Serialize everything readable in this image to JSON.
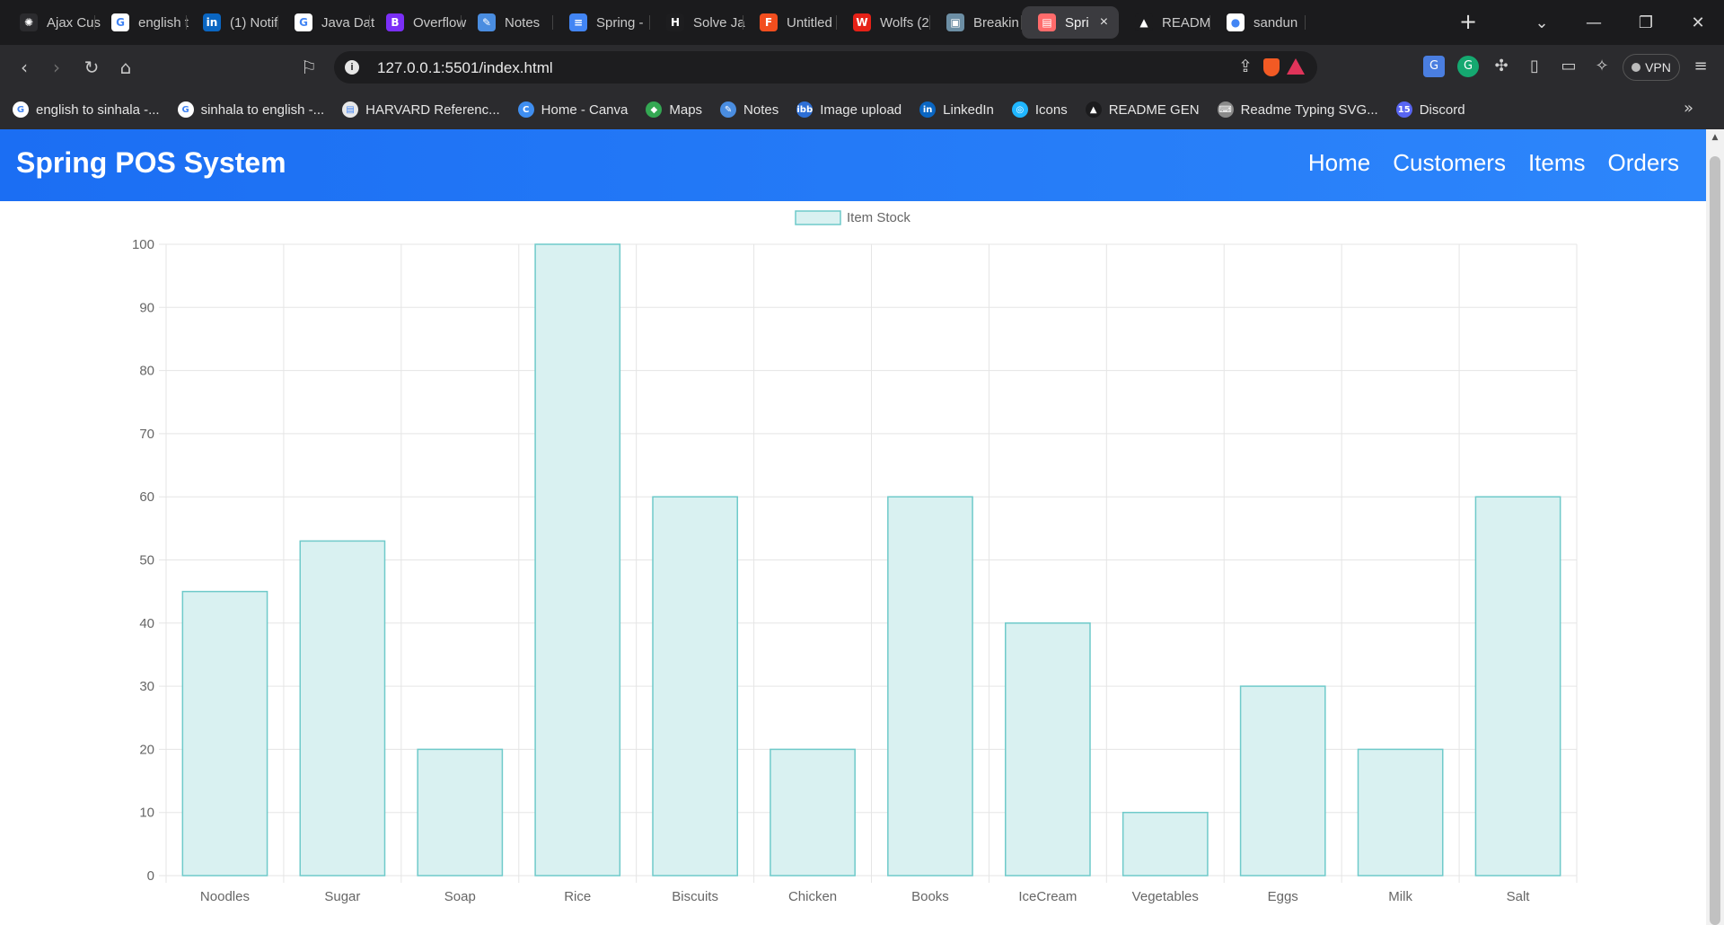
{
  "browser": {
    "tabs": [
      {
        "title": "Ajax Cus",
        "icon": "openai-icon",
        "icon_color": "#2b2b2e",
        "glyph": "✺"
      },
      {
        "title": "english t",
        "icon": "google-icon",
        "icon_color": "#ffffff",
        "glyph": "G"
      },
      {
        "title": "(1) Notif",
        "icon": "linkedin-icon",
        "icon_color": "#0a66c2",
        "glyph": "in"
      },
      {
        "title": "Java Dat",
        "icon": "google-icon",
        "icon_color": "#ffffff",
        "glyph": "G"
      },
      {
        "title": "Overflow",
        "icon": "bootstrap-icon",
        "icon_color": "#7b2ff7",
        "glyph": "B"
      },
      {
        "title": "Notes",
        "icon": "notes-icon",
        "icon_color": "#4a8de0",
        "glyph": "✎"
      },
      {
        "title": "Spring -",
        "icon": "docs-icon",
        "icon_color": "#4285f4",
        "glyph": "≡"
      },
      {
        "title": "Solve Ja",
        "icon": "hackerrank-icon",
        "icon_color": "#1d1d1f",
        "glyph": "H"
      },
      {
        "title": "Untitled",
        "icon": "figma-icon",
        "icon_color": "#f24e1e",
        "glyph": "F"
      },
      {
        "title": "Wolfs (2",
        "icon": "wolf-icon",
        "icon_color": "#e62117",
        "glyph": "W"
      },
      {
        "title": "Breakin",
        "icon": "news-icon",
        "icon_color": "#6c8ea4",
        "glyph": "▣"
      },
      {
        "title": "Spri",
        "icon": "spring-pos-icon",
        "icon_color": "#ff6b6b",
        "glyph": "▤",
        "active": true
      },
      {
        "title": "READM",
        "icon": "readme-icon",
        "icon_color": "#1b1b1d",
        "glyph": "▲"
      },
      {
        "title": "sandun",
        "icon": "github-icon",
        "icon_color": "#ffffff",
        "glyph": "●"
      }
    ],
    "tab_close": "×",
    "new_tab": "+",
    "window_controls": {
      "tab_search": "⌄",
      "minimize": "—",
      "restore": "❐",
      "close": "✕"
    },
    "url": "127.0.0.1:5501/index.html",
    "vpn_label": "VPN",
    "bookmarks": [
      {
        "title": "english to sinhala -...",
        "icon": "google-icon",
        "color": "#ffffff",
        "glyph": "G"
      },
      {
        "title": "sinhala to english -...",
        "icon": "google-icon",
        "color": "#ffffff",
        "glyph": "G"
      },
      {
        "title": "HARVARD Referenc...",
        "icon": "harvard-icon",
        "color": "#e8e8e8",
        "glyph": "▤"
      },
      {
        "title": "Home - Canva",
        "icon": "canva-icon",
        "color": "#3f8ef0",
        "glyph": "C"
      },
      {
        "title": "Maps",
        "icon": "maps-icon",
        "color": "#34a853",
        "glyph": "◆"
      },
      {
        "title": "Notes",
        "icon": "notes-icon",
        "color": "#4a8de0",
        "glyph": "✎"
      },
      {
        "title": "Image upload",
        "icon": "ibb-icon",
        "color": "#2d6fd6",
        "glyph": "ibb"
      },
      {
        "title": "LinkedIn",
        "icon": "linkedin-icon",
        "color": "#0a66c2",
        "glyph": "in"
      },
      {
        "title": "Icons",
        "icon": "icons8-icon",
        "color": "#1fb6ff",
        "glyph": "◎"
      },
      {
        "title": "README GEN",
        "icon": "readme-icon",
        "color": "#1b1b1d",
        "glyph": "▲"
      },
      {
        "title": "Readme Typing SVG...",
        "icon": "keyboard-icon",
        "color": "#8a8a8a",
        "glyph": "⌨"
      },
      {
        "title": "Discord",
        "icon": "discord-icon",
        "color": "#5865f2",
        "glyph": "15"
      }
    ]
  },
  "app": {
    "brand": "Spring POS System",
    "nav": [
      "Home",
      "Customers",
      "Items",
      "Orders"
    ]
  },
  "chart_data": {
    "type": "bar",
    "categories": [
      "Noodles",
      "Sugar",
      "Soap",
      "Rice",
      "Biscuits",
      "Chicken",
      "Books",
      "IceCream",
      "Vegetables",
      "Eggs",
      "Milk",
      "Salt"
    ],
    "series": [
      {
        "name": "Item Stock",
        "values": [
          45,
          53,
          20,
          100,
          60,
          20,
          60,
          40,
          10,
          30,
          20,
          60
        ]
      }
    ],
    "ylim": [
      0,
      100
    ],
    "yticks": [
      0,
      10,
      20,
      30,
      40,
      50,
      60,
      70,
      80,
      90,
      100
    ],
    "grid": true,
    "legend": "top-center",
    "colors": {
      "fill": "#d9f1f1",
      "stroke": "#6fcaca",
      "grid": "#e5e5e5",
      "text": "#666666"
    }
  }
}
